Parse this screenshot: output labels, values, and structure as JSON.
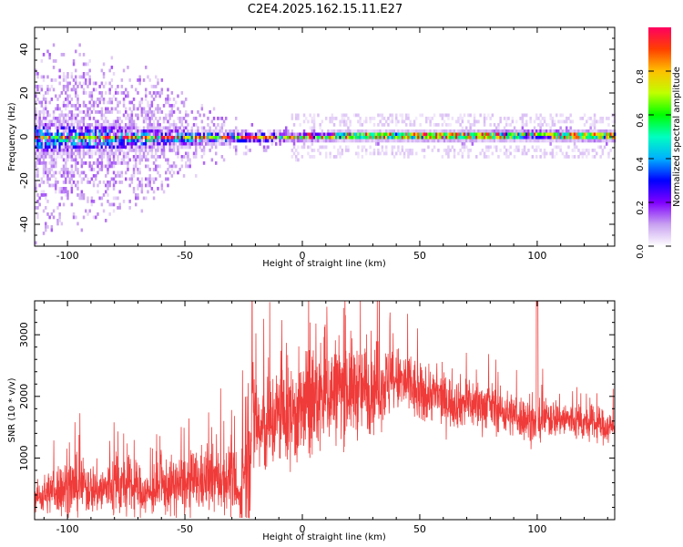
{
  "figure_title": "C2E4.2025.162.15.11.E27",
  "chart_data": [
    {
      "type": "heatmap",
      "title": "C2E4.2025.162.15.11.E27",
      "xlabel": "Height of straight line (km)",
      "ylabel": "Frequency (Hz)",
      "xlim": [
        -114,
        133
      ],
      "ylim": [
        -50,
        50
      ],
      "x_ticks": [
        -100,
        -50,
        0,
        50,
        100
      ],
      "y_ticks": [
        -40,
        -20,
        0,
        20,
        40
      ],
      "grid": false,
      "colorbar": {
        "label": "Normalized spectral amplitude",
        "range": [
          0,
          1
        ],
        "ticks": [
          0.0,
          0.2,
          0.4,
          0.6,
          0.8
        ],
        "colormap": [
          "#ffffff",
          "#c8a0f0",
          "#8000ff",
          "#0000ff",
          "#00b0ff",
          "#00ffc0",
          "#00ff00",
          "#c0ff00",
          "#ffc000",
          "#ff4000",
          "#ff0060"
        ]
      },
      "band_center_hz": [
        {
          "x": -114,
          "f": 0.0
        },
        {
          "x": -60,
          "f": 0.0
        },
        {
          "x": -30,
          "f": 0.5
        },
        {
          "x": -10,
          "f": 0.5
        },
        {
          "x": 20,
          "f": 1.0
        },
        {
          "x": 60,
          "f": 1.0
        },
        {
          "x": 100,
          "f": 1.5
        },
        {
          "x": 133,
          "f": 1.0
        }
      ],
      "band_halfwidth_hz": [
        {
          "x": -114,
          "w": 9
        },
        {
          "x": -80,
          "w": 7
        },
        {
          "x": -60,
          "w": 5
        },
        {
          "x": -30,
          "w": 3
        },
        {
          "x": -10,
          "w": 2.5
        },
        {
          "x": 40,
          "w": 2.5
        },
        {
          "x": 100,
          "w": 3
        },
        {
          "x": 133,
          "w": 3
        }
      ],
      "scatter_extent_hz": [
        {
          "x": -114,
          "e": 50
        },
        {
          "x": -80,
          "e": 40
        },
        {
          "x": -60,
          "e": 30
        },
        {
          "x": -40,
          "e": 15
        },
        {
          "x": -20,
          "e": 8
        },
        {
          "x": 0,
          "e": 4
        },
        {
          "x": 133,
          "e": 4
        }
      ]
    },
    {
      "type": "line",
      "xlabel": "Height of straight line (km)",
      "ylabel": "SNR (10 * v/v)",
      "xlim": [
        -114,
        133
      ],
      "ylim": [
        0,
        3550
      ],
      "x_ticks": [
        -100,
        -50,
        0,
        50,
        100
      ],
      "y_ticks": [
        1000,
        2000,
        3000
      ],
      "grid": false,
      "line_color": "#ef3b39",
      "series": [
        {
          "x": [
            -114,
            -110,
            -105,
            -100,
            -95,
            -90,
            -85,
            -80,
            -75,
            -70,
            -65,
            -60,
            -55,
            -50,
            -45,
            -40,
            -35,
            -30,
            -27,
            -25,
            -22,
            -20,
            -18,
            -15,
            -10,
            -5,
            0,
            5,
            10,
            15,
            20,
            25,
            30,
            35,
            40,
            45,
            50,
            55,
            60,
            65,
            70,
            75,
            80,
            85,
            90,
            95,
            99,
            100,
            101,
            105,
            110,
            115,
            120,
            125,
            130,
            133
          ],
          "mean": [
            350,
            400,
            500,
            520,
            550,
            500,
            480,
            560,
            530,
            500,
            400,
            520,
            540,
            560,
            620,
            650,
            640,
            700,
            300,
            800,
            1500,
            1700,
            1400,
            1500,
            1700,
            1700,
            1750,
            1900,
            2050,
            2100,
            2150,
            2100,
            2150,
            2200,
            2250,
            2200,
            2000,
            2050,
            1950,
            1900,
            1900,
            1850,
            1850,
            1750,
            1700,
            1650,
            1550,
            1350,
            1600,
            1650,
            1650,
            1600,
            1550,
            1550,
            1500,
            1480
          ],
          "spread": [
            250,
            350,
            450,
            550,
            500,
            450,
            450,
            600,
            500,
            450,
            350,
            500,
            500,
            550,
            550,
            600,
            550,
            650,
            300,
            1200,
            1700,
            1000,
            900,
            900,
            900,
            900,
            1000,
            1000,
            1000,
            900,
            900,
            800,
            800,
            700,
            600,
            600,
            550,
            500,
            450,
            450,
            450,
            450,
            400,
            400,
            400,
            400,
            350,
            350,
            350,
            350,
            350,
            350,
            300,
            300,
            300,
            300
          ]
        }
      ]
    }
  ]
}
